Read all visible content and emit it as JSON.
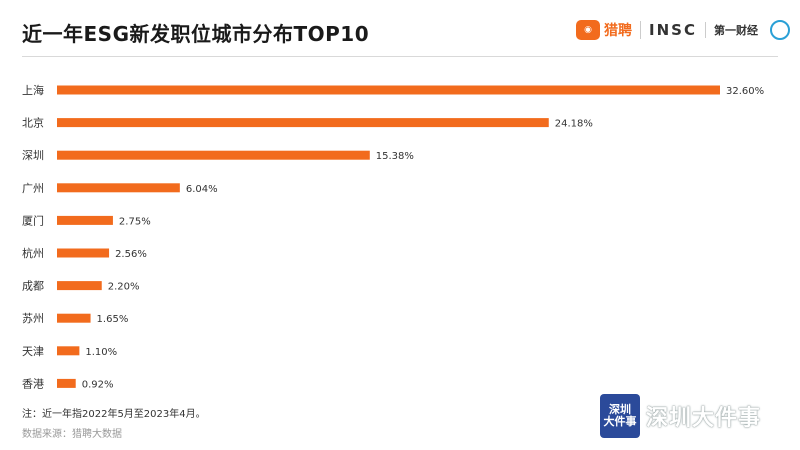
{
  "header": {
    "title": "近一年ESG新发职位城市分布TOP10",
    "logos": {
      "liepin_text": "猎聘",
      "insc": "INSC",
      "diyicaijing": "第一财经"
    }
  },
  "footer": {
    "note": "注：近一年指2022年5月至2023年4月。",
    "source": "数据来源：猎聘大数据"
  },
  "watermark": {
    "badge_lines": [
      "深圳",
      "大件事"
    ],
    "text": "深圳大件事"
  },
  "chart_data": {
    "type": "bar",
    "orientation": "horizontal",
    "title": "近一年ESG新发职位城市分布TOP10",
    "categories": [
      "上海",
      "北京",
      "深圳",
      "广州",
      "厦门",
      "杭州",
      "成都",
      "苏州",
      "天津",
      "香港"
    ],
    "values": [
      32.6,
      24.18,
      15.38,
      6.04,
      2.75,
      2.56,
      2.2,
      1.65,
      1.1,
      0.92
    ],
    "data_labels": [
      "32.60%",
      "24.18%",
      "15.38%",
      "6.04%",
      "2.75%",
      "2.56%",
      "2.20%",
      "1.65%",
      "1.10%",
      "0.92%"
    ],
    "unit": "%",
    "xlim": [
      0,
      32.6
    ],
    "color": "#f26b1d",
    "grid": false,
    "legend": "none"
  }
}
